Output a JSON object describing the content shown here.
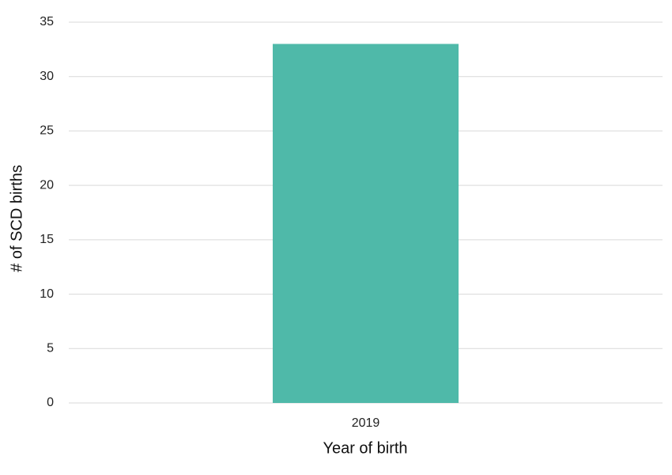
{
  "chart_data": {
    "type": "bar",
    "x_label": "Year of birth",
    "y_label": "# of SCD births",
    "categories": [
      "2019"
    ],
    "values": [
      33
    ],
    "color": "#4fb9a9",
    "ylim": [
      0,
      35
    ],
    "yticks": [
      0,
      5,
      10,
      15,
      20,
      25,
      30,
      35
    ],
    "grid": true
  }
}
